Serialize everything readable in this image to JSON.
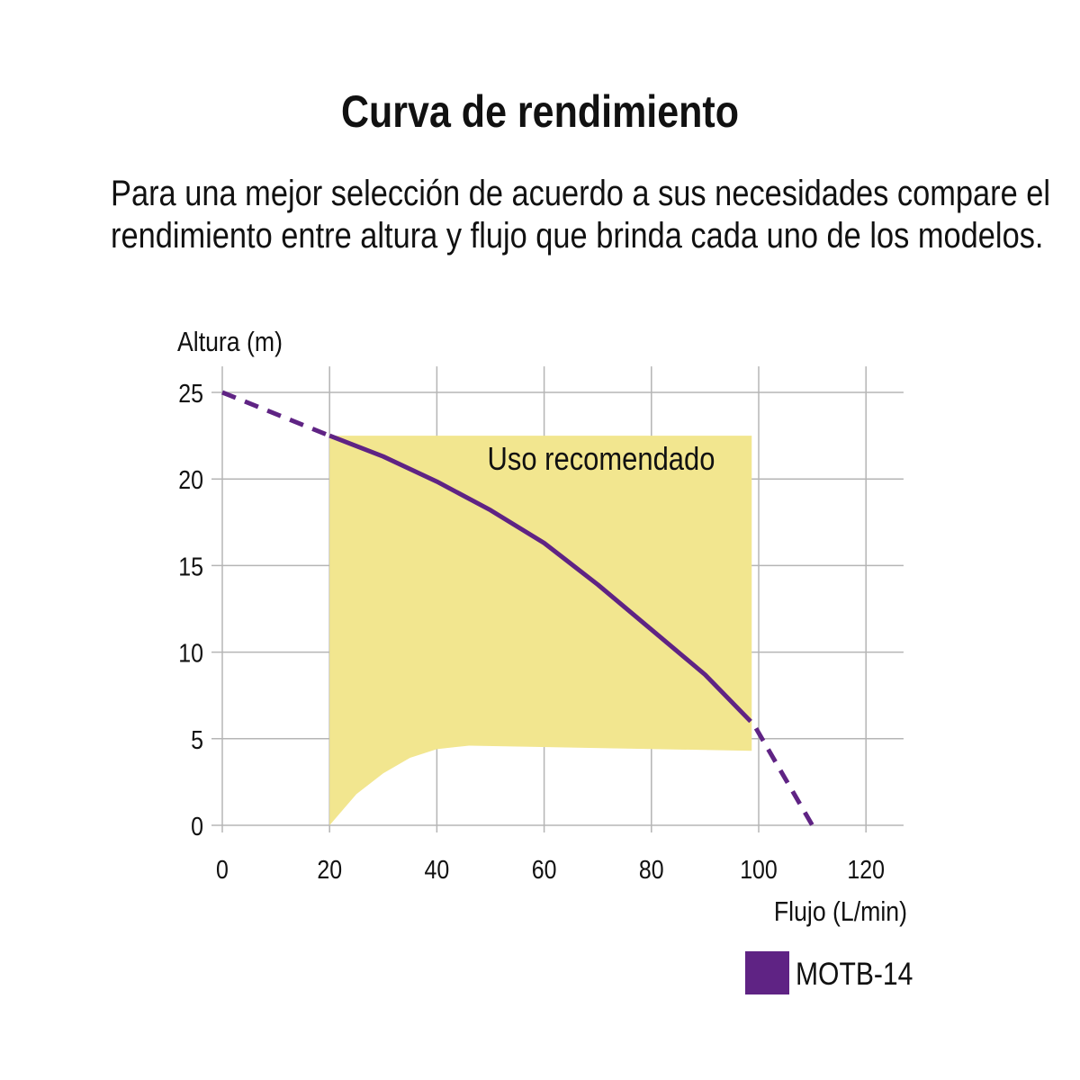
{
  "title": "Curva de rendimiento",
  "description": "Para una mejor selección de acuerdo a sus necesidades compare el rendimiento entre altura y flujo que brinda cada uno de los modelos.",
  "chart_data": {
    "type": "line",
    "ylabel": "Altura (m)",
    "xlabel": "Flujo (L/min)",
    "xlim": [
      0,
      127
    ],
    "ylim": [
      0,
      26.5
    ],
    "xticks": [
      0,
      20,
      40,
      60,
      80,
      100,
      120
    ],
    "yticks": [
      0,
      5,
      10,
      15,
      20,
      25
    ],
    "grid": true,
    "legend_position": "bottom-right",
    "colors": {
      "series": "#5f2384",
      "region": "#f2e68f",
      "grid": "#b5b5b5"
    },
    "series": [
      {
        "name": "MOTB-14",
        "solid": [
          [
            20,
            22.5
          ],
          [
            30,
            21.3
          ],
          [
            40,
            19.85
          ],
          [
            50,
            18.2
          ],
          [
            60,
            16.3
          ],
          [
            70,
            13.9
          ],
          [
            80,
            11.3
          ],
          [
            90,
            8.7
          ],
          [
            98.5,
            6
          ]
        ],
        "dashed_start": [
          [
            0,
            25
          ],
          [
            20,
            22.5
          ]
        ],
        "dashed_end": [
          [
            99.5,
            5.6
          ],
          [
            110,
            0
          ]
        ]
      }
    ],
    "region": {
      "label": "Uso recomendado",
      "x_range": [
        20,
        98.7
      ],
      "top": 22.5,
      "bottom": [
        [
          20,
          0
        ],
        [
          25,
          1.8
        ],
        [
          30,
          3
        ],
        [
          35,
          3.9
        ],
        [
          40,
          4.4
        ],
        [
          46,
          4.6
        ],
        [
          98.7,
          4.3
        ]
      ]
    }
  }
}
